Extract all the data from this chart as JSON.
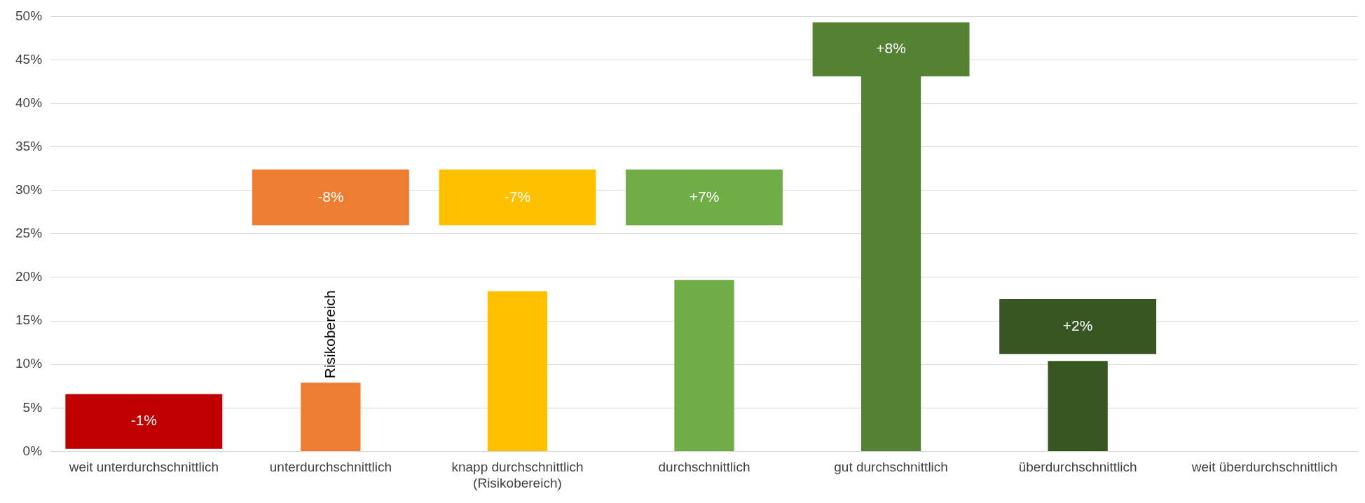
{
  "chart_data": {
    "type": "bar",
    "categories": [
      "weit unterdurchschnittlich",
      "unterdurchschnittlich",
      "knapp durchschnittlich\n(Risikobereich)",
      "durchschnittlich",
      "gut durchschnittlich",
      "überdurchschnittlich",
      "weit überdurchschnittlich"
    ],
    "series": [
      {
        "colors": [
          "#c00000",
          "#ed7d31",
          "#ffc000",
          "#70ad47",
          "#548235",
          "#375623",
          null
        ],
        "values": [
          null,
          7.9,
          18.4,
          19.7,
          43.1,
          10.4,
          null
        ]
      },
      {
        "colors": [
          "#c00000",
          "#ed7d31",
          "#ffc000",
          "#70ad47",
          "#548235",
          "#375623",
          null
        ],
        "base": [
          0.3,
          26,
          26,
          26,
          43.1,
          11.2,
          null
        ],
        "values": [
          6.3,
          6.4,
          6.4,
          6.4,
          6.2,
          6.3,
          null
        ]
      }
    ],
    "ylim": [
      0,
      50
    ],
    "yticks": [
      {
        "value": 0,
        "label": "0%"
      },
      {
        "value": 5,
        "label": "5%"
      },
      {
        "value": 10,
        "label": "10%"
      },
      {
        "value": 15,
        "label": "15%"
      },
      {
        "value": 20,
        "label": "20%"
      },
      {
        "value": 25,
        "label": "25%"
      },
      {
        "value": 30,
        "label": "30%"
      },
      {
        "value": 35,
        "label": "35%"
      },
      {
        "value": 40,
        "label": "40%"
      },
      {
        "value": 45,
        "label": "45%"
      },
      {
        "value": 50,
        "label": "50%"
      }
    ],
    "grid": "y",
    "legend": false,
    "annotations": [
      {
        "text": "-1%",
        "x": "weit unterdurchschnittlich",
        "y": 6.6
      },
      {
        "text": "-8%",
        "x": "unterdurchschnittlich",
        "y": 32.4
      },
      {
        "text": "-7%",
        "x": "knapp durchschnittlich\n(Risikobereich)",
        "y": 32.4
      },
      {
        "text": "+7%",
        "x": "durchschnittlich",
        "y": 32.4
      },
      {
        "text": "+8%",
        "x": "gut durchschnittlich",
        "y": 49.3
      },
      {
        "text": "+2%",
        "x": "überdurchschnittlich",
        "y": 17.5
      },
      {
        "text": "Risikobereich",
        "x": "unterdurchschnittlich",
        "y": 7.9
      }
    ]
  }
}
